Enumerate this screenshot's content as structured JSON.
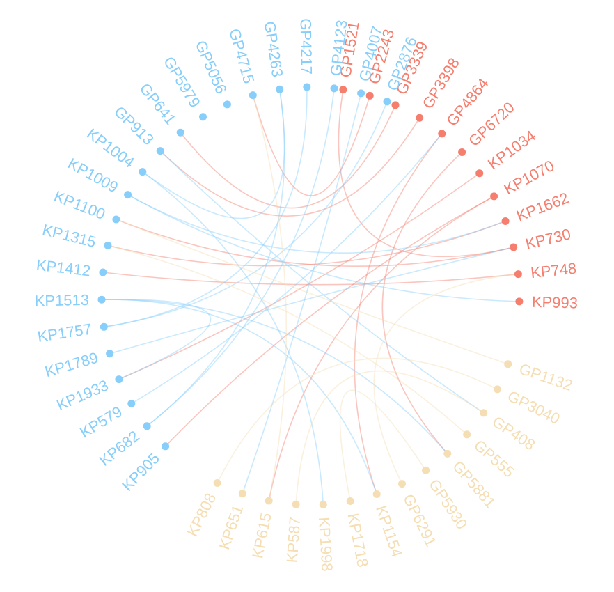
{
  "colors": {
    "blue": "#87cefa",
    "red": "#f57e6e",
    "tan": "#f5deb3"
  },
  "groups": {
    "blue": [
      "KP905",
      "KP682",
      "KP579",
      "KP1933",
      "KP1789",
      "KP1757",
      "KP1513",
      "KP1412",
      "KP1315",
      "KP1100",
      "KP1009",
      "KP1004",
      "GP913",
      "GP641",
      "GP5979",
      "GP5056",
      "GP4715",
      "GP4263",
      "GP4217",
      "GP4123",
      "GP4007",
      "GP2876"
    ],
    "red": [
      "GP1521",
      "GP2243",
      "GP3339",
      "GP3398",
      "GP4864",
      "GP6720",
      "KP1034",
      "KP1070",
      "KP1662",
      "KP730",
      "KP748",
      "KP993"
    ],
    "tan": [
      "GP1132",
      "GP3040",
      "GP408",
      "GP555",
      "GP5881",
      "GP5930",
      "GP6291",
      "KP1154",
      "KP1718",
      "KP1998",
      "KP587",
      "KP615",
      "KP651",
      "KP808"
    ]
  },
  "links": [
    {
      "from": "KP905",
      "to": "KP1070",
      "color": "red"
    },
    {
      "from": "GP1521",
      "to": "KP730",
      "color": "red"
    },
    {
      "from": "GP2243",
      "to": "GP4715",
      "color": "red"
    },
    {
      "from": "GP3339",
      "to": "GP641",
      "color": "red"
    },
    {
      "from": "GP3398",
      "to": "GP913",
      "color": "red"
    },
    {
      "from": "GP4864",
      "to": "KP1154",
      "color": "red"
    },
    {
      "from": "GP6720",
      "to": "GP5881",
      "color": "red"
    },
    {
      "from": "KP1034",
      "to": "KP1933",
      "color": "red"
    },
    {
      "from": "KP1070",
      "to": "KP615",
      "color": "red"
    },
    {
      "from": "KP1662",
      "to": "KP1315",
      "color": "red"
    },
    {
      "from": "KP748",
      "to": "KP1412",
      "color": "red"
    },
    {
      "from": "KP730",
      "to": "KP1100",
      "color": "red"
    },
    {
      "from": "KP993",
      "to": "KP1009",
      "color": "blue"
    },
    {
      "from": "KP682",
      "to": "GP4263",
      "color": "blue"
    },
    {
      "from": "KP682",
      "to": "GP4123",
      "color": "blue"
    },
    {
      "from": "KP579",
      "to": "GP4864",
      "color": "blue"
    },
    {
      "from": "KP1789",
      "to": "KP730",
      "color": "blue"
    },
    {
      "from": "KP1757",
      "to": "GP4217",
      "color": "blue"
    },
    {
      "from": "KP1757",
      "to": "GP2876",
      "color": "blue"
    },
    {
      "from": "KP1513",
      "to": "KP1154",
      "color": "blue"
    },
    {
      "from": "KP1513",
      "to": "GP5881",
      "color": "blue"
    },
    {
      "from": "KP1004",
      "to": "KP1998",
      "color": "blue"
    },
    {
      "from": "KP1004",
      "to": "GP4263",
      "color": "blue"
    },
    {
      "from": "GP4007",
      "to": "KP651",
      "color": "blue"
    },
    {
      "from": "GP913",
      "to": "GP408",
      "color": "blue"
    },
    {
      "from": "KP1009",
      "to": "KP1662",
      "color": "blue"
    },
    {
      "from": "KP1933",
      "to": "KP1513",
      "color": "blue"
    },
    {
      "from": "GP1132",
      "to": "KP1100",
      "color": "tan"
    },
    {
      "from": "GP3040",
      "to": "KP808",
      "color": "tan"
    },
    {
      "from": "GP555",
      "to": "KP1315",
      "color": "tan"
    },
    {
      "from": "GP5930",
      "to": "KP1718",
      "color": "tan"
    },
    {
      "from": "GP6291",
      "to": "KP748",
      "color": "tan"
    },
    {
      "from": "KP587",
      "to": "GP408",
      "color": "tan"
    },
    {
      "from": "KP615",
      "to": "GP4715",
      "color": "tan"
    }
  ]
}
